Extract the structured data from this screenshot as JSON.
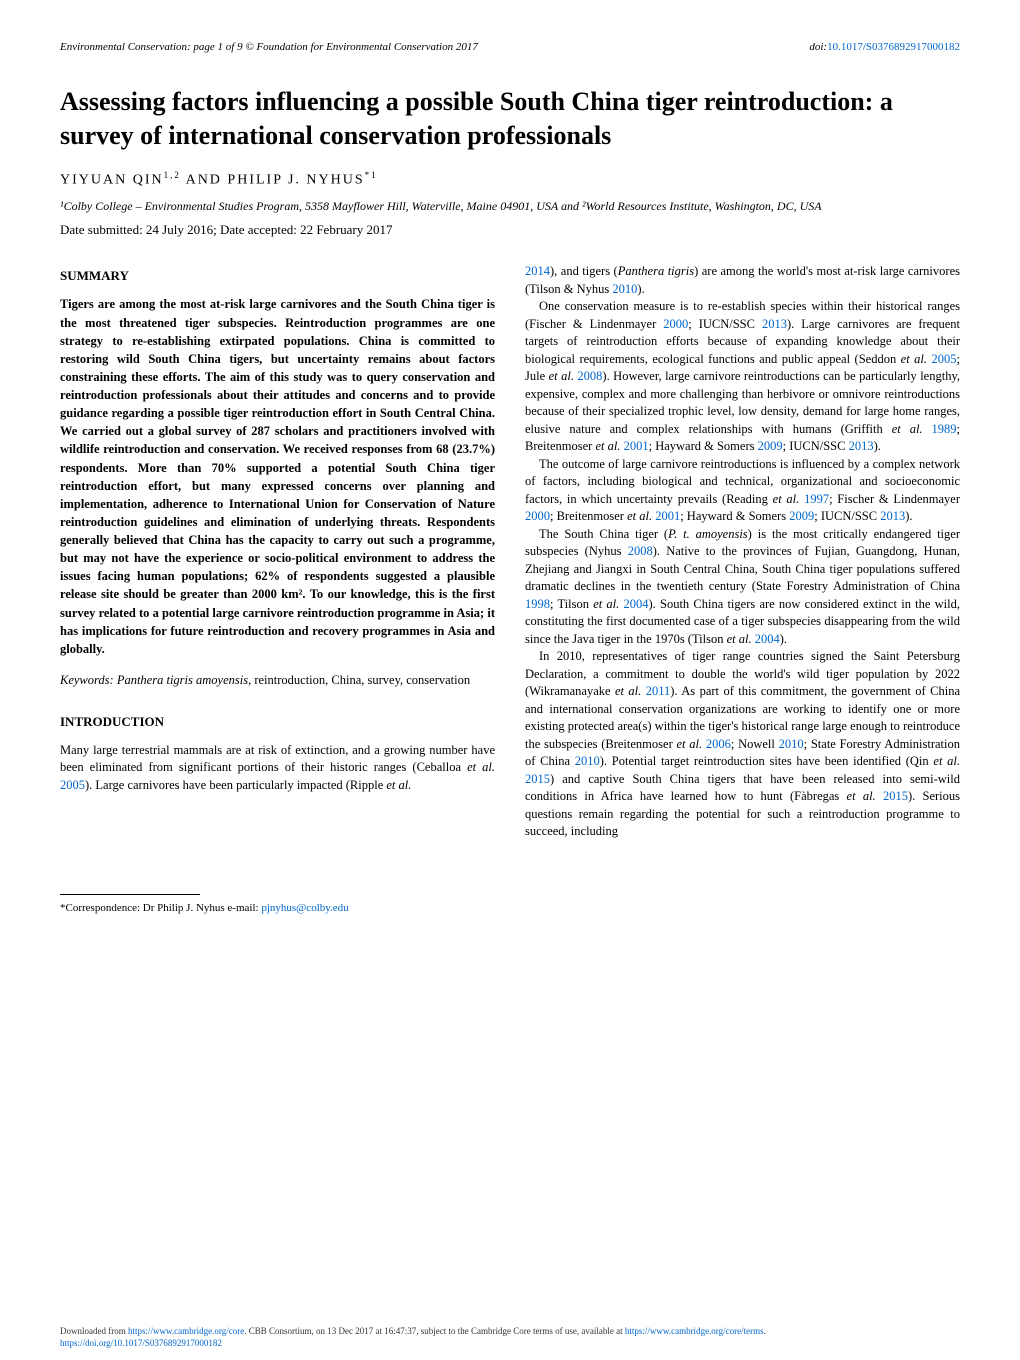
{
  "header": {
    "journal_line": "Environmental Conservation: page 1 of 9 © Foundation for Environmental Conservation 2017",
    "doi_prefix": "doi:",
    "doi": "10.1017/S0376892917000182"
  },
  "title": "Assessing factors influencing a possible South China tiger reintroduction: a survey of international conservation professionals",
  "authors_line": "YIYUAN QIN",
  "authors_sup1": "1,2",
  "authors_and": " AND PHILIP J. NYHUS",
  "authors_sup2": "*1",
  "affiliations": "¹Colby College – Environmental Studies Program, 5358 Mayflower Hill, Waterville, Maine 04901, USA and ²World Resources Institute, Washington, DC, USA",
  "dates": "Date submitted: 24 July 2016; Date accepted: 22 February 2017",
  "summary_heading": "SUMMARY",
  "summary_text": "Tigers are among the most at-risk large carnivores and the South China tiger is the most threatened tiger subspecies. Reintroduction programmes are one strategy to re-establishing extirpated populations. China is committed to restoring wild South China tigers, but uncertainty remains about factors constraining these efforts. The aim of this study was to query conservation and reintroduction professionals about their attitudes and concerns and to provide guidance regarding a possible tiger reintroduction effort in South Central China. We carried out a global survey of 287 scholars and practitioners involved with wildlife reintroduction and conservation. We received responses from 68 (23.7%) respondents. More than 70% supported a potential South China tiger reintroduction effort, but many expressed concerns over planning and implementation, adherence to International Union for Conservation of Nature reintroduction guidelines and elimination of underlying threats. Respondents generally believed that China has the capacity to carry out such a programme, but may not have the experience or socio-political environment to address the issues facing human populations; 62% of respondents suggested a plausible release site should be greater than 2000 km². To our knowledge, this is the first survey related to a potential large carnivore reintroduction programme in Asia; it has implications for future reintroduction and recovery programmes in Asia and globally.",
  "keywords_label": "Keywords: ",
  "keywords_species": "Panthera tigris amoyensis",
  "keywords_rest": ", reintroduction, China, survey, conservation",
  "intro_heading": "INTRODUCTION",
  "intro_p1_a": "Many large terrestrial mammals are at risk of extinction, and a growing number have been eliminated from significant portions of their historic ranges (Ceballoa ",
  "intro_p1_b": "et al.",
  "intro_p1_c": " ",
  "intro_p1_year1": "2005",
  "intro_p1_d": "). Large carnivores have been particularly impacted (Ripple ",
  "intro_p1_e": "et al.",
  "corr_text": "*Correspondence: Dr Philip J. Nyhus e-mail: ",
  "corr_email": "pjnyhus@colby.edu",
  "col2_p1_a": "2014",
  "col2_p1_b": "), and tigers (",
  "col2_p1_species": "Panthera tigris",
  "col2_p1_c": ") are among the world's most at-risk large carnivores (Tilson & Nyhus ",
  "col2_p1_year": "2010",
  "col2_p1_d": ").",
  "col2_p2_a": "One conservation measure is to re-establish species within their historical ranges (Fischer & Lindenmayer ",
  "col2_p2_y1": "2000",
  "col2_p2_b": "; IUCN/SSC ",
  "col2_p2_y2": "2013",
  "col2_p2_c": "). Large carnivores are frequent targets of reintroduction efforts because of expanding knowledge about their biological requirements, ecological functions and public appeal (Seddon ",
  "col2_p2_d": "et al.",
  "col2_p2_e": " ",
  "col2_p2_y3": "2005",
  "col2_p2_f": "; Jule ",
  "col2_p2_g": "et al.",
  "col2_p2_h": " ",
  "col2_p2_y4": "2008",
  "col2_p2_i": "). However, large carnivore reintroductions can be particularly lengthy, expensive, complex and more challenging than herbivore or omnivore reintroductions because of their specialized trophic level, low density, demand for large home ranges, elusive nature and complex relationships with humans (Griffith ",
  "col2_p2_j": "et al.",
  "col2_p2_k": " ",
  "col2_p2_y5": "1989",
  "col2_p2_l": "; Breitenmoser ",
  "col2_p2_m": "et al.",
  "col2_p2_n": " ",
  "col2_p2_y6": "2001",
  "col2_p2_o": "; Hayward & Somers ",
  "col2_p2_y7": "2009",
  "col2_p2_p": "; IUCN/SSC ",
  "col2_p2_y8": "2013",
  "col2_p2_q": ").",
  "col2_p3_a": "The outcome of large carnivore reintroductions is influenced by a complex network of factors, including biological and technical, organizational and socioeconomic factors, in which uncertainty prevails (Reading ",
  "col2_p3_b": "et al.",
  "col2_p3_c": " ",
  "col2_p3_y1": "1997",
  "col2_p3_d": "; Fischer & Lindenmayer ",
  "col2_p3_y2": "2000",
  "col2_p3_e": "; Breitenmoser ",
  "col2_p3_f": "et al.",
  "col2_p3_g": " ",
  "col2_p3_y3": "2001",
  "col2_p3_h": "; Hayward & Somers ",
  "col2_p3_y4": "2009",
  "col2_p3_i": "; IUCN/SSC ",
  "col2_p3_y5": "2013",
  "col2_p3_j": ").",
  "col2_p4_a": "The South China tiger (",
  "col2_p4_species": "P. t. amoyensis",
  "col2_p4_b": ") is the most critically endangered tiger subspecies (Nyhus ",
  "col2_p4_y1": "2008",
  "col2_p4_c": "). Native to the provinces of Fujian, Guangdong, Hunan, Zhejiang and Jiangxi in South Central China, South China tiger populations suffered dramatic declines in the twentieth century (State Forestry Administration of China ",
  "col2_p4_y2": "1998",
  "col2_p4_d": "; Tilson ",
  "col2_p4_e": "et al.",
  "col2_p4_f": " ",
  "col2_p4_y3": "2004",
  "col2_p4_g": "). South China tigers are now considered extinct in the wild, constituting the first documented case of a tiger subspecies disappearing from the wild since the Java tiger in the 1970s (Tilson ",
  "col2_p4_h": "et al.",
  "col2_p4_i": " ",
  "col2_p4_y4": "2004",
  "col2_p4_j": ").",
  "col2_p5_a": "In 2010, representatives of tiger range countries signed the Saint Petersburg Declaration, a commitment to double the world's wild tiger population by 2022 (Wikramanayake ",
  "col2_p5_b": "et al.",
  "col2_p5_c": " ",
  "col2_p5_y1": "2011",
  "col2_p5_d": "). As part of this commitment, the government of China and international conservation organizations are working to identify one or more existing protected area(s) within the tiger's historical range large enough to reintroduce the subspecies (Breitenmoser ",
  "col2_p5_e": "et al.",
  "col2_p5_f": " ",
  "col2_p5_y2": "2006",
  "col2_p5_g": "; Nowell ",
  "col2_p5_y3": "2010",
  "col2_p5_h": "; State Forestry Administration of China ",
  "col2_p5_y4": "2010",
  "col2_p5_i": "). Potential target reintroduction sites have been identified (Qin ",
  "col2_p5_j": "et al.",
  "col2_p5_k": " ",
  "col2_p5_y5": "2015",
  "col2_p5_l": ") and captive South China tigers that have been released into semi-wild conditions in Africa have learned how to hunt (Fàbregas ",
  "col2_p5_m": "et al.",
  "col2_p5_n": " ",
  "col2_p5_y6": "2015",
  "col2_p5_o": "). Serious questions remain regarding the potential for such a reintroduction programme to succeed, including",
  "footer_a": "Downloaded from ",
  "footer_link1": "https://www.cambridge.org/core",
  "footer_b": ". CBB Consortium, on 13 Dec 2017 at 16:47:37, subject to the Cambridge Core terms of use, available at ",
  "footer_link2": "https://www.cambridge.org/core/terms",
  "footer_c": ".",
  "footer_link3": "https://doi.org/10.1017/S0376892917000182"
}
